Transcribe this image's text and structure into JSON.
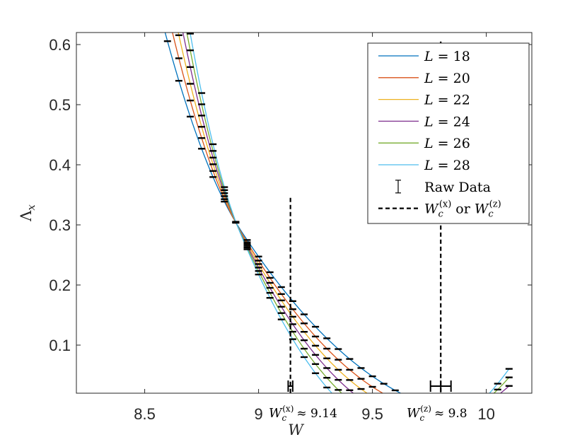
{
  "chart_data": {
    "type": "line",
    "title": "",
    "xlabel": "W",
    "ylabel": "Λx",
    "xlim": [
      8.2,
      10.2
    ],
    "ylim": [
      0.02,
      0.62
    ],
    "xticks": [
      8.5,
      9,
      9.5,
      10
    ],
    "yticks": [
      0.1,
      0.2,
      0.3,
      0.4,
      0.5,
      0.6
    ],
    "xtick_labels": [
      "8.5",
      "9",
      "9.5",
      "10"
    ],
    "ytick_labels": [
      "0.1",
      "0.2",
      "0.3",
      "0.4",
      "0.5",
      "0.6"
    ],
    "series": [
      {
        "name": "L = 18",
        "L": 18,
        "color": "#0072BD",
        "fit_x_start": 8.35,
        "fit_x_end": 10.1,
        "a": 0.292,
        "b": -0.58,
        "c": 1.25,
        "fit_range_label": "",
        "data_x_start": 8.35,
        "data_x_end": 10.1
      },
      {
        "name": "L = 20",
        "L": 20,
        "color": "#D95319",
        "fit_x_start": 8.35,
        "fit_x_end": 10.1,
        "a": 0.29,
        "b": -0.645,
        "c": 1.55,
        "data_x_start": 8.4,
        "data_x_end": 10.1
      },
      {
        "name": "L = 22",
        "L": 22,
        "color": "#EDB120",
        "fit_x_start": 8.35,
        "fit_x_end": 10.1,
        "a": 0.289,
        "b": -0.71,
        "c": 1.85,
        "data_x_start": 8.45,
        "data_x_end": 10.1
      },
      {
        "name": "L = 24",
        "L": 24,
        "color": "#7E2F8E",
        "fit_x_start": 8.35,
        "fit_x_end": 10.1,
        "a": 0.288,
        "b": -0.775,
        "c": 2.15,
        "data_x_start": 8.5,
        "data_x_end": 10.1
      },
      {
        "name": "L = 26",
        "L": 26,
        "color": "#77AC30",
        "fit_x_start": 8.35,
        "fit_x_end": 10.1,
        "a": 0.287,
        "b": -0.84,
        "c": 2.45,
        "data_x_start": 8.55,
        "data_x_end": 10.1
      },
      {
        "name": "L = 28",
        "L": 28,
        "color": "#4DBEEE",
        "fit_x_start": 8.35,
        "fit_x_end": 10.1,
        "a": 0.286,
        "b": -0.905,
        "c": 2.75,
        "data_x_start": 8.6,
        "data_x_end": 10.1
      }
    ],
    "data_step": 0.05,
    "x0": 8.92,
    "critical_lines": [
      {
        "label_prefix": "W",
        "label_sub": "c",
        "label_sup": "(x)",
        "label_approx": "≈ 9.14",
        "x": 9.14,
        "err_low": 9.13,
        "err_high": 9.15,
        "y_top": 0.345
      },
      {
        "label_prefix": "W",
        "label_sub": "c",
        "label_sup": "(z)",
        "label_approx": "≈ 9.8",
        "x": 9.8,
        "err_low": 9.755,
        "err_high": 9.845,
        "y_top": 0.605
      }
    ],
    "legend": {
      "position": "top-right",
      "entries": [
        "L = 18",
        "L = 20",
        "L = 22",
        "L = 24",
        "L = 26",
        "L = 28",
        "Raw Data",
        "Wc(x) or Wc(z)"
      ],
      "raw_data_label": "Raw Data",
      "critical_label": "W_c^(x) or W_c^(z)",
      "critical_label_or": "or"
    }
  }
}
